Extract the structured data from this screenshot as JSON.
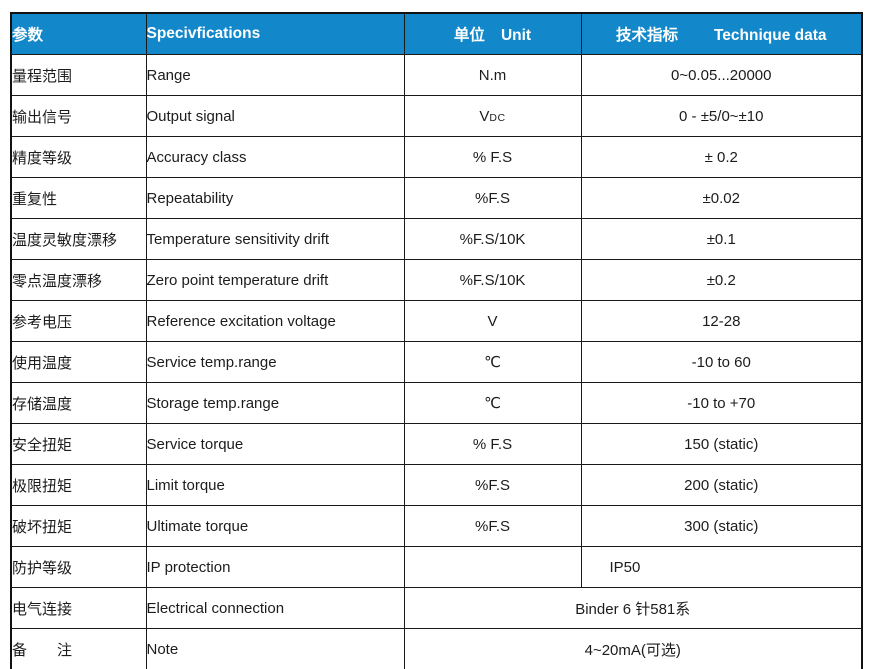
{
  "page": {
    "background": "#ffffff"
  },
  "table": {
    "accent_color": "#1287c9",
    "header_text_color": "#ffffff",
    "body_text_color": "#1c1c1c",
    "border_color": "#1a1a1a",
    "header": {
      "col1_zh": "参数",
      "col2_en": "Specivfications",
      "col3_zh": "单位",
      "col3_en": "Unit",
      "col4_zh": "技术指标",
      "col4_en": "Technique data"
    },
    "rows": [
      {
        "zh": "量程范围",
        "en": "Range",
        "unit": "N.m",
        "value": "0~0.05...20000"
      },
      {
        "zh": "输出信号",
        "en": "Output signal",
        "unit": "V",
        "unit_sub": "DC",
        "value": "0 - ±5/0~±10"
      },
      {
        "zh": "精度等级",
        "en": "Accuracy class",
        "unit": "% F.S",
        "value": "± 0.2"
      },
      {
        "zh": "重复性",
        "en": "Repeatability",
        "unit": "%F.S",
        "value": "±0.02"
      },
      {
        "zh": "温度灵敏度漂移",
        "en": "Temperature sensitivity drift",
        "unit": "%F.S/10K",
        "value": "±0.1"
      },
      {
        "zh": "零点温度漂移",
        "en": "Zero point temperature drift",
        "unit": "%F.S/10K",
        "value": "±0.2"
      },
      {
        "zh": "参考电压",
        "en": "Reference excitation voltage",
        "unit": "V",
        "value": "12-28"
      },
      {
        "zh": "使用温度",
        "en": "Service temp.range",
        "unit": "℃",
        "value": "-10 to 60"
      },
      {
        "zh": "存储温度",
        "en": "Storage temp.range",
        "unit": "℃",
        "value": "-10 to +70"
      },
      {
        "zh": "安全扭矩",
        "en": "Service torque",
        "unit": "% F.S",
        "value": "150 (static)"
      },
      {
        "zh": "极限扭矩",
        "en": "Limit torque",
        "unit": "%F.S",
        "value": "200 (static)"
      },
      {
        "zh": "破坏扭矩",
        "en": "Ultimate torque",
        "unit": "%F.S",
        "value": "300 (static)"
      },
      {
        "zh": "防护等级",
        "en": "IP protection",
        "unit": "",
        "value": "IP50",
        "value_align": "left"
      },
      {
        "zh": "电气连接",
        "en": "Electrical connection",
        "merged_value": "Binder 6 针581系"
      },
      {
        "zh": "备　　注",
        "en": "Note",
        "merged_value": "4~20mA(可选)"
      }
    ]
  }
}
